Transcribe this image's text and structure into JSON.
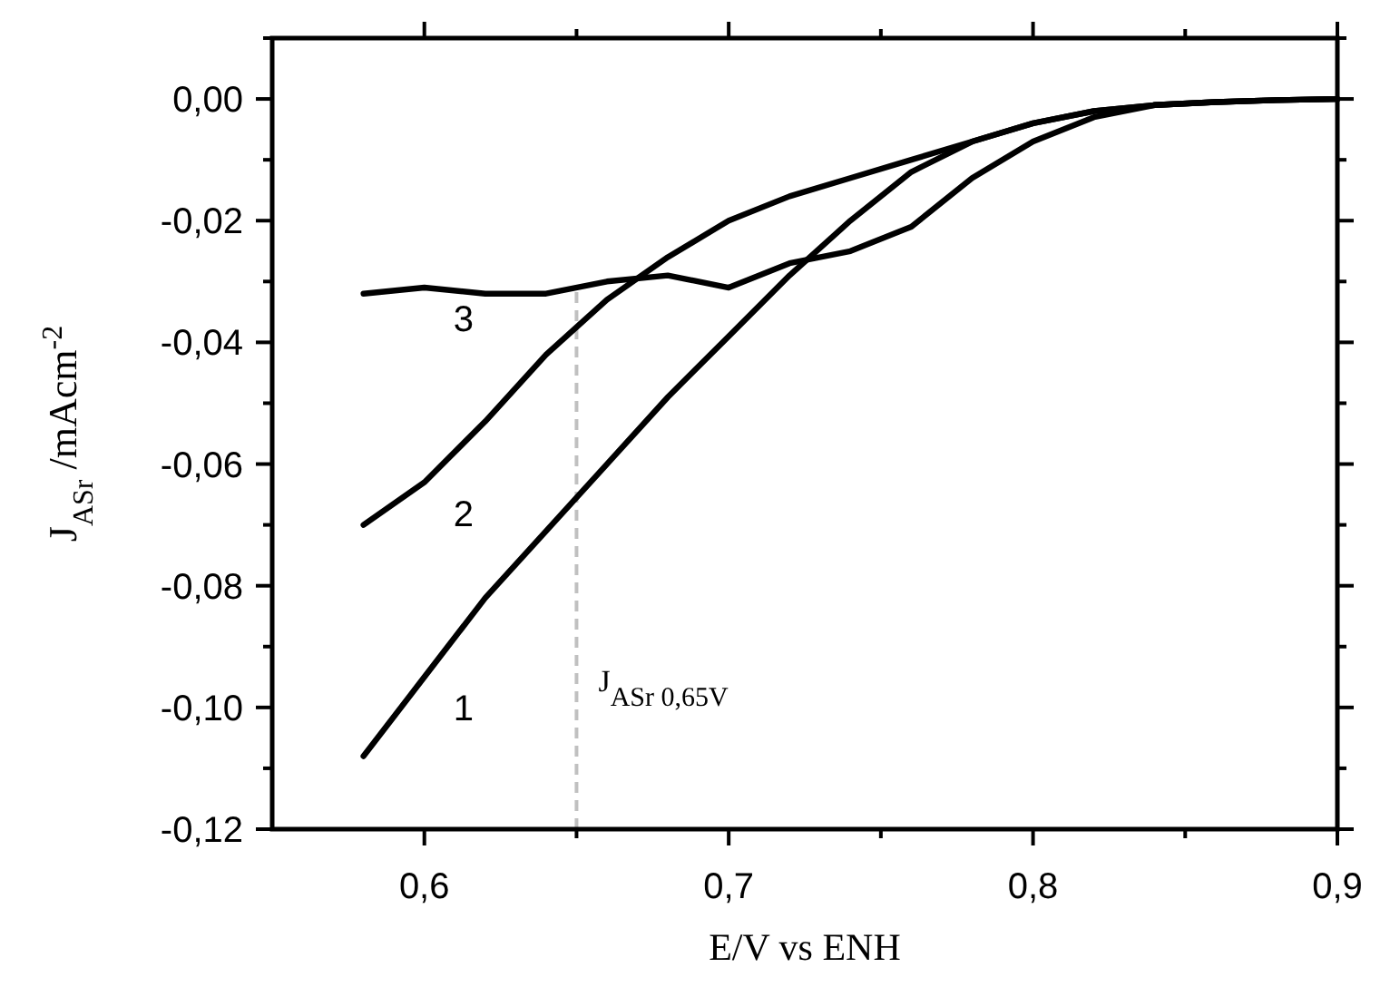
{
  "chart_data": {
    "type": "line",
    "xlabel": "E/V vs ENH",
    "ylabel": "J$_{ASr}$ /mAcm$^{-2}$",
    "x": [
      0.58,
      0.6,
      0.62,
      0.64,
      0.66,
      0.68,
      0.7,
      0.72,
      0.74,
      0.76,
      0.78,
      0.8,
      0.82,
      0.84,
      0.86,
      0.88,
      0.9
    ],
    "series": [
      {
        "name": "1",
        "color": "#000000",
        "values": [
          -0.108,
          -0.095,
          -0.082,
          -0.071,
          -0.06,
          -0.049,
          -0.039,
          -0.029,
          -0.02,
          -0.012,
          -0.007,
          -0.004,
          -0.002,
          -0.001,
          -0.0005,
          -0.0002,
          0
        ]
      },
      {
        "name": "2",
        "color": "#000000",
        "values": [
          -0.07,
          -0.063,
          -0.053,
          -0.042,
          -0.033,
          -0.026,
          -0.02,
          -0.016,
          -0.013,
          -0.01,
          -0.007,
          -0.004,
          -0.002,
          -0.001,
          -0.0005,
          -0.0002,
          0
        ]
      },
      {
        "name": "3",
        "color": "#000000",
        "values": [
          -0.032,
          -0.031,
          -0.032,
          -0.032,
          -0.03,
          -0.029,
          -0.031,
          -0.027,
          -0.025,
          -0.021,
          -0.013,
          -0.007,
          -0.003,
          -0.001,
          -0.0005,
          -0.0002,
          0
        ]
      }
    ],
    "xlim": [
      0.55,
      0.9
    ],
    "ylim": [
      -0.12,
      0.01
    ],
    "xticks": [
      {
        "value": 0.6,
        "label": "0,6"
      },
      {
        "value": 0.65,
        "label": null
      },
      {
        "value": 0.7,
        "label": "0,7"
      },
      {
        "value": 0.75,
        "label": null
      },
      {
        "value": 0.8,
        "label": "0,8"
      },
      {
        "value": 0.85,
        "label": null
      },
      {
        "value": 0.9,
        "label": "0,9"
      }
    ],
    "yticks": [
      {
        "value": -0.12,
        "label": "-0,12"
      },
      {
        "value": -0.11,
        "label": null
      },
      {
        "value": -0.1,
        "label": "-0,10"
      },
      {
        "value": -0.09,
        "label": null
      },
      {
        "value": -0.08,
        "label": "-0,08"
      },
      {
        "value": -0.07,
        "label": null
      },
      {
        "value": -0.06,
        "label": "-0,06"
      },
      {
        "value": -0.05,
        "label": null
      },
      {
        "value": -0.04,
        "label": "-0,04"
      },
      {
        "value": -0.03,
        "label": null
      },
      {
        "value": -0.02,
        "label": "-0,02"
      },
      {
        "value": -0.01,
        "label": null
      },
      {
        "value": 0,
        "label": "0,00"
      },
      {
        "value": 0.01,
        "label": null
      }
    ],
    "ref_lines": [
      {
        "axis": "x",
        "value": 0.65,
        "label": "J$_{ASr 0,65V}$",
        "color": "#c0c0c0",
        "line_style": "dashed"
      }
    ],
    "marker": "none",
    "line_style": "solid",
    "grid": false
  }
}
